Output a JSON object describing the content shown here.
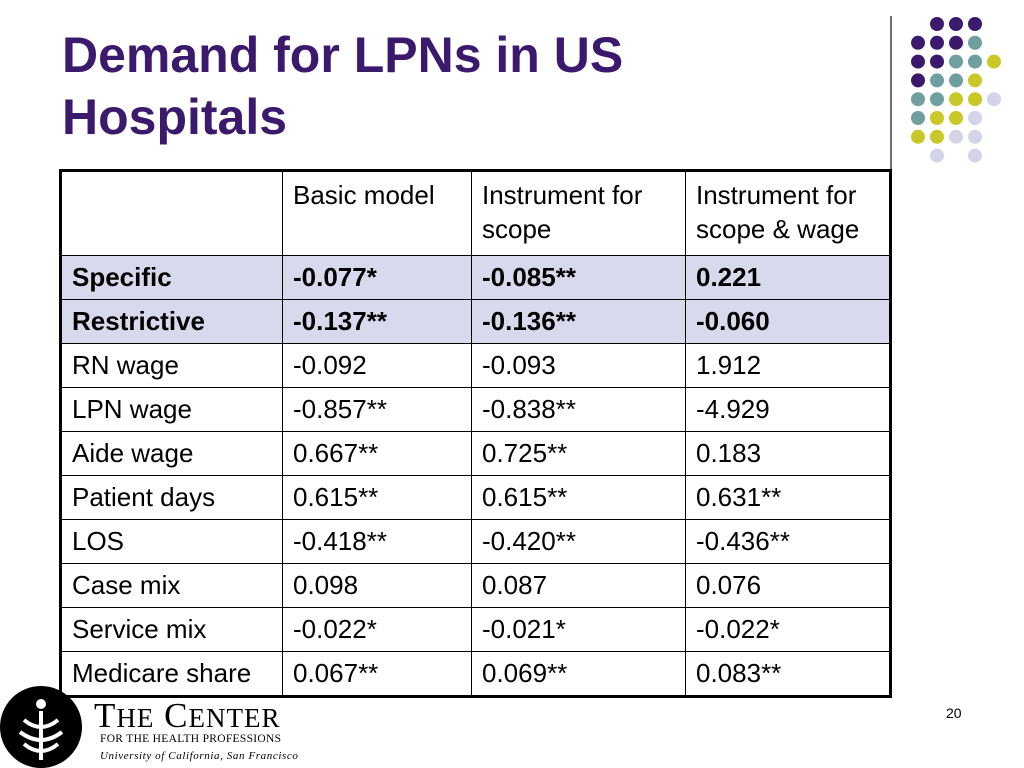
{
  "slide": {
    "title": "Demand for LPNs in US Hospitals",
    "page_number": "20"
  },
  "table": {
    "headers": [
      "",
      "Basic model",
      "Instrument for scope",
      "Instrument for scope & wage"
    ],
    "rows": [
      {
        "label": "Specific",
        "values": [
          "-0.077*",
          "-0.085**",
          "0.221"
        ],
        "highlight": true
      },
      {
        "label": "Restrictive",
        "values": [
          "-0.137**",
          "-0.136**",
          "-0.060"
        ],
        "highlight": true
      },
      {
        "label": "RN wage",
        "values": [
          "-0.092",
          "-0.093",
          "1.912"
        ],
        "highlight": false
      },
      {
        "label": "LPN wage",
        "values": [
          "-0.857**",
          "-0.838**",
          "-4.929"
        ],
        "highlight": false
      },
      {
        "label": "Aide wage",
        "values": [
          "0.667**",
          "0.725**",
          "0.183"
        ],
        "highlight": false
      },
      {
        "label": "Patient days",
        "values": [
          "0.615**",
          "0.615**",
          "0.631**"
        ],
        "highlight": false
      },
      {
        "label": "LOS",
        "values": [
          "-0.418**",
          "-0.420**",
          "-0.436**"
        ],
        "highlight": false
      },
      {
        "label": "Case mix",
        "values": [
          "0.098",
          "0.087",
          "0.076"
        ],
        "highlight": false
      },
      {
        "label": "Service mix",
        "values": [
          "-0.022*",
          "-0.021*",
          "-0.022*"
        ],
        "highlight": false
      },
      {
        "label": "Medicare share",
        "values": [
          "0.067**",
          "0.069**",
          "0.083**"
        ],
        "highlight": false
      }
    ]
  },
  "logo": {
    "name_first_cap": "T",
    "name_first_rest": "HE",
    "name_second_cap": "C",
    "name_second_rest": "ENTER",
    "subtitle": "FOR THE HEALTH PROFESSIONS",
    "university": "University of California, San Francisco"
  },
  "colors": {
    "title": "#3b1a6e",
    "highlight_row": "#d9d9ee",
    "dot_purple": "#3b1a6e",
    "dot_teal": "#6f9f9f",
    "dot_yellow": "#c8c828",
    "dot_lavender": "#d4d4e8"
  }
}
